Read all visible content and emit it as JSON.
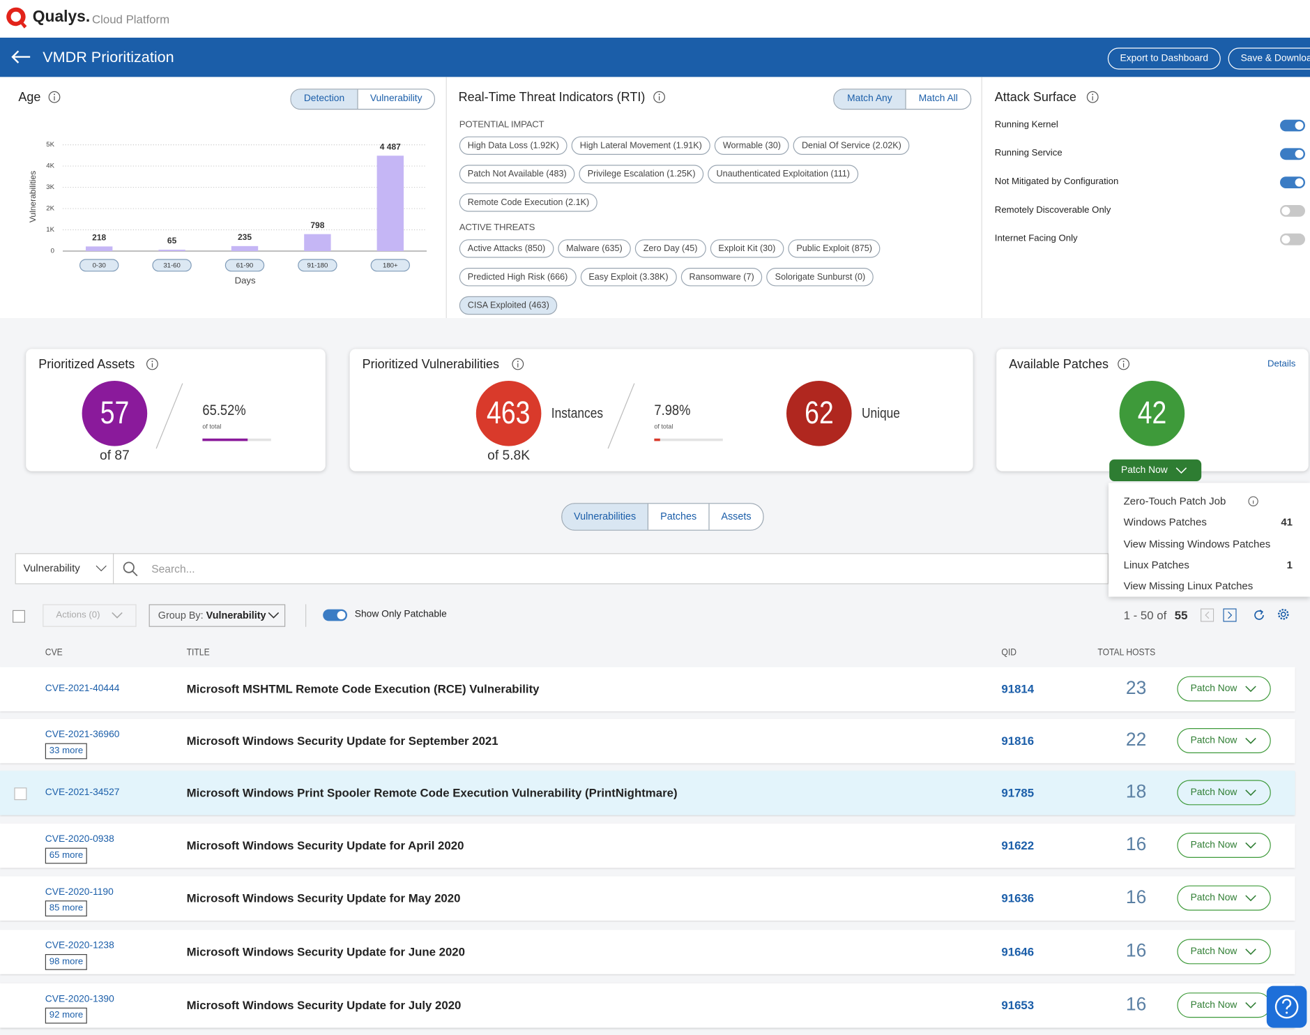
{
  "header": {
    "brand": "Qualys.",
    "product": "Cloud Platform"
  },
  "titlebar": {
    "title": "VMDR Prioritization",
    "buttons": [
      "Export to Dashboard",
      "Save & Download"
    ]
  },
  "age": {
    "title": "Age",
    "toggle": [
      "Detection",
      "Vulnerability"
    ],
    "chart_data": {
      "type": "bar",
      "y_label": "Vulnerabilities",
      "x_label": "Days",
      "categories": [
        "0-30",
        "31-60",
        "61-90",
        "91-180",
        "180+"
      ],
      "values": [
        218,
        65,
        235,
        798,
        4487
      ],
      "value_labels": [
        "218",
        "65",
        "235",
        "798",
        "4 487"
      ],
      "color": "#c5b6f5",
      "ylim": [
        0,
        5000
      ],
      "yticks": [
        0,
        {
          "value": 1000,
          "label": "1K"
        },
        {
          "value": 2000,
          "label": "2K"
        },
        {
          "value": 3000,
          "label": "3K"
        },
        {
          "value": 4000,
          "label": "4K"
        },
        {
          "value": 5000,
          "label": "5K"
        }
      ],
      "grid": true
    }
  },
  "rti": {
    "title": "Real-Time Threat Indicators (RTI)",
    "toggle": [
      "Match Any",
      "Match All"
    ],
    "sections": [
      {
        "heading": "POTENTIAL IMPACT",
        "tags": [
          "High Data Loss (1.92K)",
          "High Lateral Movement (1.91K)",
          "Wormable (30)",
          "Denial Of Service (2.02K)",
          "Patch Not Available (483)",
          "Privilege Escalation (1.25K)",
          "Unauthenticated Exploitation (111)",
          "Remote Code Execution (2.1K)"
        ]
      },
      {
        "heading": "ACTIVE THREATS",
        "tags": [
          "Active Attacks (850)",
          "Malware (635)",
          "Zero Day (45)",
          "Exploit Kit (30)",
          "Public Exploit (875)",
          "Predicted High Risk (666)",
          "Easy Exploit (3.38K)",
          "Ransomware (7)",
          "Solorigate Sunburst (0)",
          "CISA Exploited (463)"
        ]
      }
    ]
  },
  "attack_surface": {
    "title": "Attack Surface",
    "items": [
      {
        "label": "Running Kernel",
        "on": true
      },
      {
        "label": "Running Service",
        "on": true
      },
      {
        "label": "Not Mitigated by Configuration",
        "on": true
      },
      {
        "label": "Remotely Discoverable Only",
        "on": false
      },
      {
        "label": "Internet Facing Only",
        "on": false
      }
    ]
  },
  "assets_card": {
    "title": "Prioritized Assets",
    "value": "57",
    "of": "of 87",
    "percent": 65.52,
    "percent_label": "65.52%",
    "sub": "of total"
  },
  "vulns_card": {
    "title": "Prioritized Vulnerabilities",
    "value": "463",
    "value_caption": "Instances",
    "of": "of 5.8K",
    "percent": 7.98,
    "percent_label": "7.98%",
    "sub": "of total",
    "unique": "62",
    "unique_caption": "Unique"
  },
  "patches_card": {
    "title": "Available Patches",
    "details": "Details",
    "value": "42",
    "button": "Patch Now"
  },
  "patch_menu": [
    {
      "label": "Zero-Touch Patch Job"
    },
    {
      "label": "Windows Patches",
      "count": 41
    },
    {
      "label": "View Missing Windows Patches"
    },
    {
      "label": "Linux Patches",
      "count": 1
    },
    {
      "label": "View Missing Linux Patches"
    }
  ],
  "tabs": [
    "Vulnerabilities",
    "Patches",
    "Assets"
  ],
  "search": {
    "select": "Vulnerability",
    "placeholder": "Search..."
  },
  "toolbar": {
    "actions": "Actions (0)",
    "group_by": "Group By:",
    "group_value": "Vulnerability",
    "patchable": "Show Only Patchable",
    "range": "1 - 50 of",
    "total": "55"
  },
  "table": {
    "columns": [
      "CVE",
      "TITLE",
      "QID",
      "TOTAL HOSTS"
    ],
    "rows": [
      {
        "cve": "CVE-2021-40444",
        "title": "Microsoft MSHTML Remote Code Execution (RCE) Vulnerability",
        "qid": "91814",
        "hosts": "23",
        "action": "Patch Now"
      },
      {
        "cve": "CVE-2021-36960",
        "more": "33 more",
        "title": "Microsoft Windows Security Update for September 2021",
        "qid": "91816",
        "hosts": "22",
        "action": "Patch Now"
      },
      {
        "cve": "CVE-2021-34527",
        "title": "Microsoft Windows Print Spooler Remote Code Execution Vulnerability (PrintNightmare)",
        "qid": "91785",
        "hosts": "18",
        "action": "Patch Now",
        "selected": true
      },
      {
        "cve": "CVE-2020-0938",
        "more": "65 more",
        "title": "Microsoft Windows Security Update for April 2020",
        "qid": "91622",
        "hosts": "16",
        "action": "Patch Now"
      },
      {
        "cve": "CVE-2020-1190",
        "more": "85 more",
        "title": "Microsoft Windows Security Update for May 2020",
        "qid": "91636",
        "hosts": "16",
        "action": "Patch Now"
      },
      {
        "cve": "CVE-2020-1238",
        "more": "98 more",
        "title": "Microsoft Windows Security Update for June 2020",
        "qid": "91646",
        "hosts": "16",
        "action": "Patch Now"
      },
      {
        "cve": "CVE-2020-1390",
        "more": "92 more",
        "title": "Microsoft Windows Security Update for July 2020",
        "qid": "91653",
        "hosts": "16",
        "action": "Patch Now"
      }
    ]
  }
}
